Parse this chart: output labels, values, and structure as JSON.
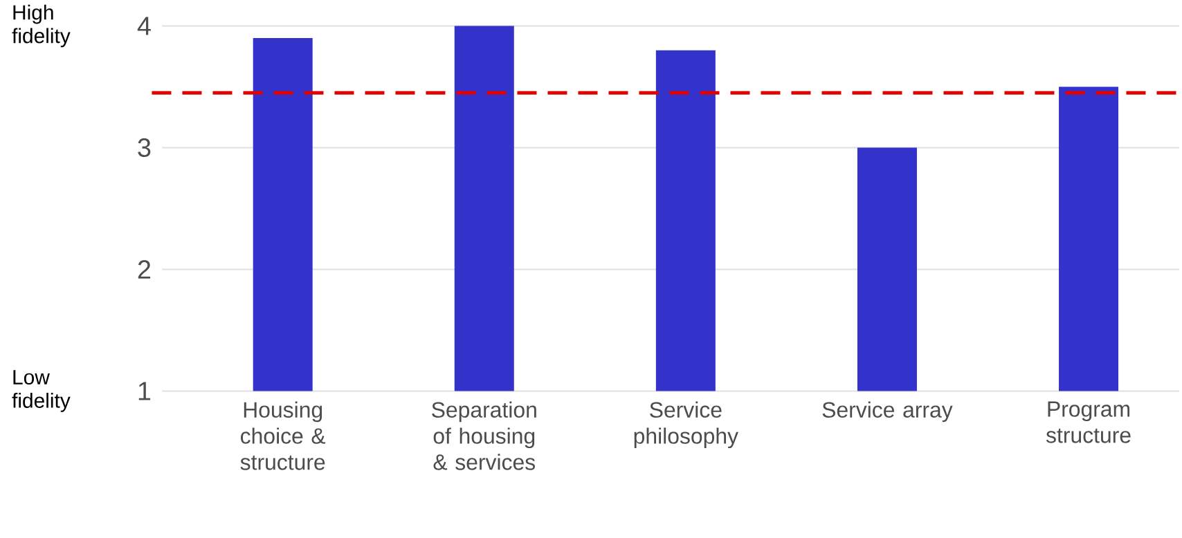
{
  "chart_data": {
    "type": "bar",
    "categories": [
      "Housing choice & structure",
      "Separation of housing & services",
      "Service philosophy",
      "Service array",
      "Program structure"
    ],
    "values": [
      3.9,
      4.0,
      3.8,
      3.0,
      3.5
    ],
    "color": "#3333cc",
    "ylim": [
      1,
      4
    ],
    "yticks": [
      1,
      2,
      3,
      4
    ],
    "grid": "y",
    "ref_lines": [
      {
        "axis": "y",
        "value": 3.45,
        "color": "#e00000",
        "line_style": "dashed"
      }
    ],
    "annotations": [
      "High fidelity",
      "Low fidelity"
    ]
  }
}
